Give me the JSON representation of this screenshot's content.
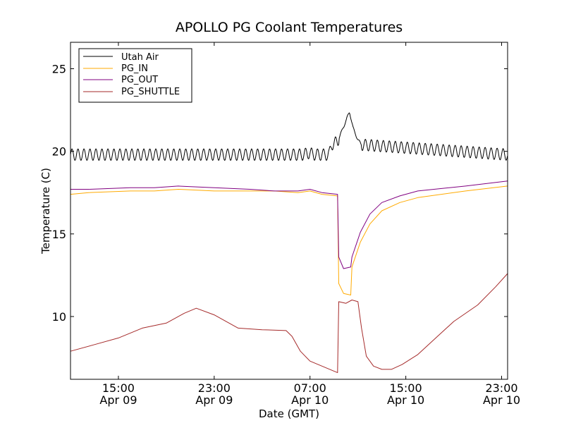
{
  "chart_data": {
    "type": "line",
    "title": "APOLLO PG Coolant Temperatures",
    "xlabel": "Date (GMT)",
    "ylabel": "Temperature (C)",
    "x_unit": "hours since Apr 09 00:00 GMT",
    "xlim": [
      11,
      47.5
    ],
    "ylim": [
      6.2,
      26.6
    ],
    "grid": false,
    "legend_position": "top-left",
    "y_ticks": [
      10,
      15,
      20,
      25
    ],
    "y_tick_labels": [
      "10",
      "15",
      "20",
      "25"
    ],
    "x_ticks": [
      15,
      23,
      31,
      39,
      47
    ],
    "x_tick_labels": [
      [
        "15:00",
        "Apr 09"
      ],
      [
        "23:00",
        "Apr 09"
      ],
      [
        "07:00",
        "Apr 10"
      ],
      [
        "15:00",
        "Apr 10"
      ],
      [
        "23:00",
        "Apr 10"
      ]
    ],
    "series": [
      {
        "name": "Utah Air",
        "color": "#000000",
        "oscillation": {
          "amplitude": 0.35,
          "period_hours": 0.5
        },
        "x": [
          11,
          30.4,
          30.9,
          31.4,
          32.6,
          32.8,
          33.3,
          33.7,
          34.3,
          34.6,
          35.0,
          35.3,
          47.5
        ],
        "values": [
          19.8,
          19.8,
          19.9,
          19.8,
          19.8,
          20.4,
          20.6,
          21.3,
          22.4,
          21.4,
          20.7,
          20.4,
          19.8
        ]
      },
      {
        "name": "PG_IN",
        "color": "#ffaa00",
        "x": [
          11,
          12.5,
          16,
          18,
          20,
          23,
          26,
          28,
          30,
          31,
          32,
          33.3,
          33.4,
          33.8,
          34.4,
          34.5,
          35.2,
          36.0,
          37.0,
          38.5,
          40.0,
          44.0,
          47.5
        ],
        "values": [
          17.4,
          17.5,
          17.6,
          17.6,
          17.7,
          17.6,
          17.6,
          17.6,
          17.5,
          17.6,
          17.4,
          17.3,
          12.0,
          11.4,
          11.3,
          13.0,
          14.5,
          15.6,
          16.4,
          16.9,
          17.2,
          17.6,
          17.9
        ]
      },
      {
        "name": "PG_OUT",
        "color": "#800080",
        "x": [
          11,
          12.5,
          16,
          18,
          20,
          23,
          26,
          28,
          30,
          31,
          32,
          33.3,
          33.4,
          33.8,
          34.4,
          34.5,
          35.2,
          36.0,
          37.0,
          38.5,
          40.0,
          44.0,
          47.5
        ],
        "values": [
          17.7,
          17.7,
          17.8,
          17.8,
          17.9,
          17.8,
          17.7,
          17.6,
          17.6,
          17.7,
          17.5,
          17.4,
          13.6,
          12.9,
          13.0,
          13.6,
          15.1,
          16.2,
          16.9,
          17.3,
          17.6,
          17.9,
          18.2
        ]
      },
      {
        "name": "PG_SHUTTLE",
        "color": "#a52a2a",
        "x": [
          11,
          13,
          15,
          17,
          19,
          20.5,
          21.5,
          23,
          25,
          27,
          29,
          29.5,
          30.2,
          31,
          32,
          33.3,
          33.4,
          34,
          34.5,
          35,
          35.3,
          35.7,
          36.3,
          37.0,
          37.8,
          38.7,
          40,
          41.5,
          43,
          45,
          46.5,
          47.5
        ],
        "values": [
          7.9,
          8.3,
          8.7,
          9.3,
          9.6,
          10.2,
          10.5,
          10.1,
          9.3,
          9.2,
          9.15,
          8.8,
          7.9,
          7.3,
          7.0,
          6.6,
          10.9,
          10.8,
          11.0,
          10.9,
          9.3,
          7.6,
          7.0,
          6.8,
          6.8,
          7.1,
          7.7,
          8.7,
          9.7,
          10.7,
          11.8,
          12.6
        ]
      }
    ]
  }
}
